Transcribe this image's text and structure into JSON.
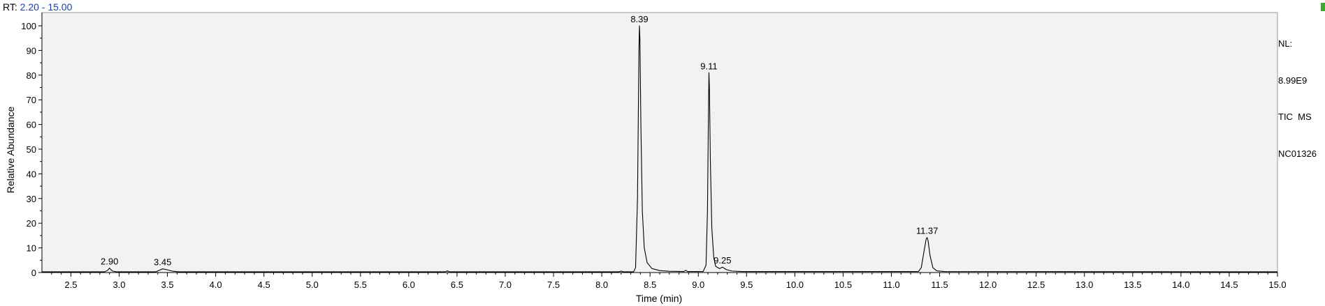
{
  "header": {
    "rt_label": "RT:",
    "rt_range": "2.20 - 15.00"
  },
  "info": {
    "nl_label": "NL:",
    "nl_value": "8.99E9",
    "scan_filter": "TIC  MS",
    "sample": "NC01326"
  },
  "chart_data": {
    "type": "line",
    "xlabel": "Time (min)",
    "ylabel": "Relative Abundance",
    "xlim": [
      2.2,
      15.0
    ],
    "ylim": [
      0,
      100
    ],
    "x_ticks": [
      2.5,
      3.0,
      3.5,
      4.0,
      4.5,
      5.0,
      5.5,
      6.0,
      6.5,
      7.0,
      7.5,
      8.0,
      8.5,
      9.0,
      9.5,
      10.0,
      10.5,
      11.0,
      11.5,
      12.0,
      12.5,
      13.0,
      13.5,
      14.0,
      14.5,
      15.0
    ],
    "y_ticks": [
      0,
      10,
      20,
      30,
      40,
      50,
      60,
      70,
      80,
      90,
      100
    ],
    "grid": false,
    "series": [
      {
        "color": "#000000",
        "points": [
          [
            2.2,
            0.3
          ],
          [
            2.85,
            0.3
          ],
          [
            2.88,
            0.9
          ],
          [
            2.9,
            1.8
          ],
          [
            2.93,
            0.6
          ],
          [
            2.97,
            0.3
          ],
          [
            3.38,
            0.3
          ],
          [
            3.42,
            1.0
          ],
          [
            3.45,
            1.5
          ],
          [
            3.5,
            1.1
          ],
          [
            3.56,
            0.5
          ],
          [
            3.62,
            0.3
          ],
          [
            6.38,
            0.3
          ],
          [
            6.4,
            0.7
          ],
          [
            6.42,
            0.3
          ],
          [
            8.18,
            0.3
          ],
          [
            8.2,
            0.6
          ],
          [
            8.22,
            0.3
          ],
          [
            8.33,
            0.3
          ],
          [
            8.35,
            2.0
          ],
          [
            8.37,
            30.0
          ],
          [
            8.385,
            90.0
          ],
          [
            8.39,
            100.0
          ],
          [
            8.395,
            95.0
          ],
          [
            8.405,
            60.0
          ],
          [
            8.42,
            25.0
          ],
          [
            8.44,
            10.0
          ],
          [
            8.47,
            4.0
          ],
          [
            8.52,
            1.6
          ],
          [
            8.6,
            0.8
          ],
          [
            8.7,
            0.5
          ],
          [
            8.85,
            0.4
          ],
          [
            8.87,
            0.9
          ],
          [
            8.89,
            0.4
          ],
          [
            9.05,
            0.4
          ],
          [
            9.08,
            3.0
          ],
          [
            9.095,
            25.0
          ],
          [
            9.105,
            65.0
          ],
          [
            9.11,
            81.0
          ],
          [
            9.115,
            75.0
          ],
          [
            9.125,
            45.0
          ],
          [
            9.14,
            18.0
          ],
          [
            9.16,
            6.0
          ],
          [
            9.18,
            2.5
          ],
          [
            9.22,
            1.6
          ],
          [
            9.25,
            2.2
          ],
          [
            9.29,
            1.2
          ],
          [
            9.35,
            0.6
          ],
          [
            9.45,
            0.4
          ],
          [
            11.28,
            0.4
          ],
          [
            11.31,
            2.0
          ],
          [
            11.34,
            9.0
          ],
          [
            11.36,
            13.5
          ],
          [
            11.37,
            14.2
          ],
          [
            11.38,
            13.0
          ],
          [
            11.4,
            7.0
          ],
          [
            11.43,
            2.0
          ],
          [
            11.47,
            0.7
          ],
          [
            11.55,
            0.4
          ],
          [
            15.0,
            0.3
          ]
        ]
      }
    ],
    "peak_labels": [
      {
        "x": 2.9,
        "y": 1.8,
        "label": "2.90"
      },
      {
        "x": 3.45,
        "y": 1.5,
        "label": "3.45"
      },
      {
        "x": 8.39,
        "y": 100,
        "label": "8.39"
      },
      {
        "x": 9.11,
        "y": 81,
        "label": "9.11"
      },
      {
        "x": 9.25,
        "y": 2.2,
        "label": "9.25"
      },
      {
        "x": 11.37,
        "y": 14.2,
        "label": "11.37"
      }
    ]
  }
}
